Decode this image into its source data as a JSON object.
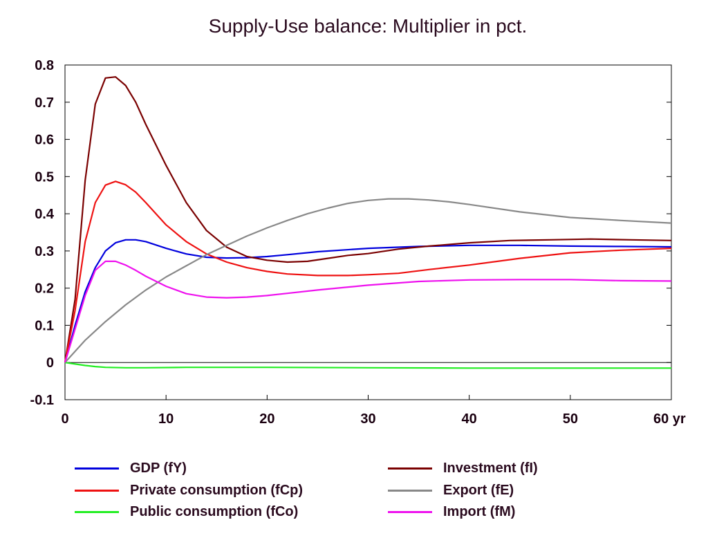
{
  "chart_data": {
    "type": "line",
    "title": "Supply-Use balance: Multiplier in pct.",
    "xlabel": "",
    "ylabel": "",
    "xlim": [
      0,
      60
    ],
    "ylim": [
      -0.1,
      0.8
    ],
    "x_ticks": [
      0,
      10,
      20,
      30,
      40,
      50,
      60
    ],
    "x_tick_labels": [
      "0",
      "10",
      "20",
      "30",
      "40",
      "50",
      "60 yr"
    ],
    "y_ticks": [
      -0.1,
      0,
      0.1,
      0.2,
      0.3,
      0.4,
      0.5,
      0.6,
      0.7,
      0.8
    ],
    "y_tick_labels": [
      "-0.1",
      "0",
      "0.1",
      "0.2",
      "0.3",
      "0.4",
      "0.5",
      "0.6",
      "0.7",
      "0.8"
    ],
    "grid": false,
    "zero_line": true,
    "legend_position": "bottom",
    "series": [
      {
        "name": "GDP (fY)",
        "color": "#0000dd",
        "x": [
          0,
          1,
          2,
          3,
          4,
          5,
          6,
          7,
          8,
          10,
          12,
          14,
          16,
          18,
          20,
          22,
          25,
          30,
          35,
          40,
          45,
          50,
          55,
          60
        ],
        "y": [
          0,
          0.1,
          0.19,
          0.255,
          0.3,
          0.322,
          0.33,
          0.33,
          0.325,
          0.307,
          0.292,
          0.283,
          0.281,
          0.282,
          0.285,
          0.29,
          0.298,
          0.307,
          0.312,
          0.315,
          0.315,
          0.313,
          0.312,
          0.311
        ]
      },
      {
        "name": "Investment (fI)",
        "color": "#7a0000",
        "x": [
          0,
          1,
          2,
          3,
          4,
          5,
          6,
          7,
          8,
          10,
          12,
          14,
          16,
          18,
          20,
          22,
          24,
          26,
          28,
          30,
          33,
          36,
          40,
          44,
          48,
          52,
          56,
          60
        ],
        "y": [
          0,
          0.17,
          0.49,
          0.695,
          0.765,
          0.768,
          0.745,
          0.7,
          0.64,
          0.53,
          0.43,
          0.355,
          0.31,
          0.285,
          0.275,
          0.27,
          0.272,
          0.28,
          0.288,
          0.293,
          0.305,
          0.313,
          0.322,
          0.328,
          0.33,
          0.332,
          0.33,
          0.328
        ]
      },
      {
        "name": "Private consumption (fCp)",
        "color": "#ee1111",
        "x": [
          0,
          1,
          2,
          3,
          4,
          5,
          6,
          7,
          8,
          10,
          12,
          14,
          16,
          18,
          20,
          22,
          25,
          28,
          30,
          33,
          36,
          40,
          45,
          50,
          55,
          60
        ],
        "y": [
          0,
          0.14,
          0.325,
          0.43,
          0.477,
          0.487,
          0.478,
          0.458,
          0.43,
          0.37,
          0.325,
          0.292,
          0.27,
          0.255,
          0.245,
          0.238,
          0.234,
          0.234,
          0.236,
          0.24,
          0.25,
          0.262,
          0.28,
          0.295,
          0.302,
          0.307
        ]
      },
      {
        "name": "Export (fE)",
        "color": "#888888",
        "x": [
          0,
          2,
          4,
          6,
          8,
          10,
          12,
          14,
          16,
          18,
          20,
          22,
          24,
          26,
          28,
          30,
          32,
          34,
          36,
          38,
          40,
          45,
          50,
          55,
          60
        ],
        "y": [
          0,
          0.06,
          0.11,
          0.155,
          0.195,
          0.23,
          0.26,
          0.29,
          0.315,
          0.34,
          0.362,
          0.382,
          0.4,
          0.415,
          0.428,
          0.436,
          0.44,
          0.44,
          0.437,
          0.432,
          0.425,
          0.405,
          0.39,
          0.382,
          0.375
        ]
      },
      {
        "name": "Public consumption (fCo)",
        "color": "#22ee22",
        "x": [
          0,
          1,
          2,
          3,
          4,
          6,
          8,
          12,
          20,
          30,
          40,
          50,
          60
        ],
        "y": [
          0,
          -0.004,
          -0.008,
          -0.011,
          -0.013,
          -0.014,
          -0.014,
          -0.013,
          -0.013,
          -0.014,
          -0.015,
          -0.015,
          -0.015
        ]
      },
      {
        "name": "Import (fM)",
        "color": "#ee11ee",
        "x": [
          0,
          1,
          2,
          3,
          4,
          5,
          6,
          7,
          8,
          10,
          12,
          14,
          16,
          18,
          20,
          22,
          25,
          30,
          35,
          40,
          45,
          50,
          55,
          60
        ],
        "y": [
          0,
          0.09,
          0.18,
          0.248,
          0.272,
          0.272,
          0.262,
          0.248,
          0.232,
          0.205,
          0.185,
          0.176,
          0.174,
          0.176,
          0.18,
          0.186,
          0.195,
          0.208,
          0.218,
          0.222,
          0.223,
          0.223,
          0.22,
          0.219
        ]
      }
    ]
  },
  "legend_layout": [
    {
      "series_index": 0
    },
    {
      "series_index": 2
    },
    {
      "series_index": 4
    },
    {
      "series_index": 1
    },
    {
      "series_index": 3
    },
    {
      "series_index": 5
    }
  ]
}
